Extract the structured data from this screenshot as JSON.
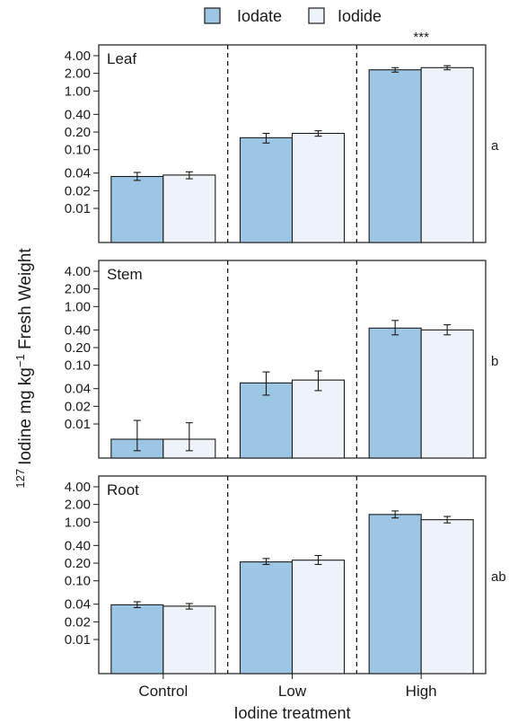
{
  "chart_data": {
    "type": "bar",
    "xlabel": "Iodine treatment",
    "ylabel": {
      "prefix": "127",
      "main": "Iodine mg kg",
      "exp": "−1",
      "suffix": " Fresh Weight"
    },
    "categories": [
      "Control",
      "Low",
      "High"
    ],
    "y_scale": "log",
    "yticks": [
      {
        "value": 0.01,
        "label": "0.01"
      },
      {
        "value": 0.02,
        "label": "0.02"
      },
      {
        "value": 0.04,
        "label": "0.04"
      },
      {
        "value": 0.1,
        "label": "0.10"
      },
      {
        "value": 0.2,
        "label": "0.20"
      },
      {
        "value": 0.4,
        "label": "0.40"
      },
      {
        "value": 1.0,
        "label": "1.00"
      },
      {
        "value": 2.0,
        "label": "2.00"
      },
      {
        "value": 4.0,
        "label": "4.00"
      }
    ],
    "legend": {
      "position": "top",
      "entries": [
        "Iodate",
        "Iodide"
      ]
    },
    "colors": {
      "Iodate": "#9cc6e4",
      "Iodide": "#eef3f9"
    },
    "panels": [
      {
        "label": "Leaf",
        "group_letter": "a",
        "significance": "***",
        "series": [
          {
            "name": "Iodate",
            "values": [
              0.035,
              0.16,
              2.3
            ],
            "err_low": [
              0.03,
              0.13,
              2.1
            ],
            "err_high": [
              0.041,
              0.19,
              2.5
            ]
          },
          {
            "name": "Iodide",
            "values": [
              0.037,
              0.19,
              2.5
            ],
            "err_low": [
              0.032,
              0.17,
              2.3
            ],
            "err_high": [
              0.042,
              0.21,
              2.7
            ]
          }
        ]
      },
      {
        "label": "Stem",
        "group_letter": "b",
        "significance": "",
        "series": [
          {
            "name": "Iodate",
            "values": [
              0.0055,
              0.05,
              0.43
            ],
            "err_low": [
              0.0035,
              0.031,
              0.33
            ],
            "err_high": [
              0.0115,
              0.077,
              0.58
            ]
          },
          {
            "name": "Iodide",
            "values": [
              0.0055,
              0.056,
              0.4
            ],
            "err_low": [
              0.0035,
              0.037,
              0.33
            ],
            "err_high": [
              0.0105,
              0.08,
              0.49
            ]
          }
        ]
      },
      {
        "label": "Root",
        "group_letter": "ab",
        "significance": "",
        "series": [
          {
            "name": "Iodate",
            "values": [
              0.039,
              0.21,
              1.35
            ],
            "err_low": [
              0.035,
              0.19,
              1.18
            ],
            "err_high": [
              0.044,
              0.24,
              1.55
            ]
          },
          {
            "name": "Iodide",
            "values": [
              0.037,
              0.225,
              1.1
            ],
            "err_low": [
              0.033,
              0.19,
              0.97
            ],
            "err_high": [
              0.041,
              0.27,
              1.25
            ]
          }
        ]
      }
    ]
  }
}
